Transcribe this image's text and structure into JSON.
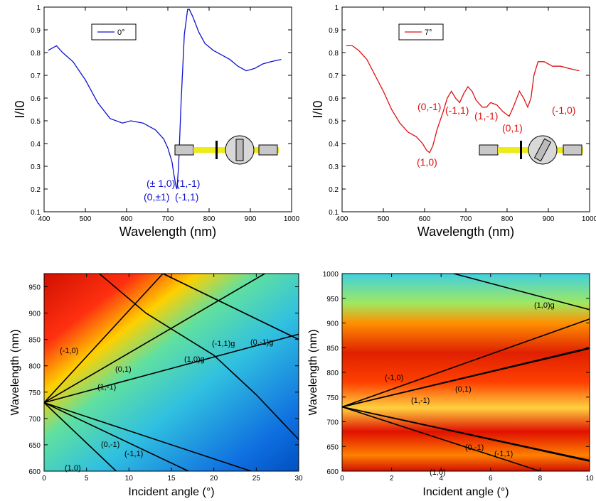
{
  "colors": {
    "blue": "#1010d0",
    "red": "#e01010",
    "frame": "#000000"
  },
  "chart_data": [
    {
      "type": "line",
      "xlabel": "Wavelength (nm)",
      "ylabel": "I/I0",
      "xlim": [
        400,
        1000
      ],
      "ylim": [
        0.1,
        1
      ],
      "xticks": [
        "400",
        "500",
        "600",
        "700",
        "800",
        "900",
        "1000"
      ],
      "yticks": [
        "0.1",
        "0.2",
        "0.3",
        "0.4",
        "0.5",
        "0.6",
        "0.7",
        "0.8",
        "0.9",
        "1"
      ],
      "legend": {
        "position": "top-left",
        "label": "0°"
      },
      "series": [
        {
          "name": "0°",
          "color": "#1010d0",
          "x": [
            410,
            430,
            445,
            470,
            500,
            530,
            560,
            590,
            610,
            640,
            670,
            690,
            700,
            710,
            715,
            720,
            722,
            726,
            732,
            740,
            748,
            752,
            760,
            775,
            790,
            810,
            830,
            850,
            870,
            890,
            910,
            930,
            950,
            975
          ],
          "y": [
            0.81,
            0.83,
            0.8,
            0.76,
            0.68,
            0.58,
            0.51,
            0.49,
            0.5,
            0.49,
            0.46,
            0.42,
            0.38,
            0.32,
            0.26,
            0.21,
            0.2,
            0.3,
            0.58,
            0.88,
            0.99,
            0.99,
            0.96,
            0.89,
            0.84,
            0.81,
            0.79,
            0.77,
            0.74,
            0.72,
            0.73,
            0.75,
            0.76,
            0.77
          ]
        }
      ],
      "annotations": [
        "(± 1,0)",
        "(0,±1)",
        "(1,-1)",
        "(-1,1)"
      ]
    },
    {
      "type": "line",
      "xlabel": "Wavelength (nm)",
      "ylabel": "I/I0",
      "xlim": [
        400,
        1000
      ],
      "ylim": [
        0.1,
        1
      ],
      "xticks": [
        "400",
        "500",
        "600",
        "700",
        "800",
        "900",
        "1000"
      ],
      "yticks": [
        "0.1",
        "0.2",
        "0.3",
        "0.4",
        "0.5",
        "0.6",
        "0.7",
        "0.8",
        "0.9",
        "1"
      ],
      "legend": {
        "position": "top-left",
        "label": "7°"
      },
      "series": [
        {
          "name": "7°",
          "color": "#e01010",
          "x": [
            410,
            425,
            440,
            460,
            480,
            500,
            520,
            540,
            560,
            580,
            595,
            605,
            612,
            620,
            630,
            645,
            655,
            665,
            675,
            685,
            695,
            705,
            715,
            725,
            740,
            750,
            760,
            775,
            790,
            805,
            815,
            830,
            840,
            850,
            858,
            865,
            875,
            890,
            910,
            930,
            950,
            975
          ],
          "y": [
            0.83,
            0.83,
            0.81,
            0.77,
            0.7,
            0.63,
            0.55,
            0.49,
            0.45,
            0.43,
            0.4,
            0.37,
            0.36,
            0.39,
            0.46,
            0.54,
            0.6,
            0.63,
            0.6,
            0.58,
            0.62,
            0.65,
            0.63,
            0.59,
            0.56,
            0.56,
            0.58,
            0.57,
            0.54,
            0.52,
            0.56,
            0.63,
            0.6,
            0.56,
            0.6,
            0.7,
            0.76,
            0.76,
            0.74,
            0.74,
            0.73,
            0.72
          ]
        }
      ],
      "annotations": [
        "(1,0)",
        "(0,-1)",
        "(-1,1)",
        "(1,-1)",
        "(0,1)",
        "(-1,0)"
      ]
    },
    {
      "type": "heatmap",
      "xlabel": "Incident angle (°)",
      "ylabel": "Wavelength (nm)",
      "xlim": [
        0,
        30
      ],
      "ylim": [
        600,
        975
      ],
      "xticks": [
        "0",
        "5",
        "10",
        "15",
        "20",
        "25",
        "30"
      ],
      "yticks": [
        "600",
        "650",
        "700",
        "750",
        "800",
        "850",
        "900",
        "950"
      ],
      "colormap": "jet",
      "mode_lines": [
        {
          "label": "(-1,0)",
          "x": [
            0,
            14
          ],
          "y": [
            730,
            975
          ]
        },
        {
          "label": "(0,1)",
          "x": [
            0,
            26
          ],
          "y": [
            730,
            975
          ]
        },
        {
          "label": "(1,-1)",
          "x": [
            0,
            30
          ],
          "y": [
            730,
            860
          ]
        },
        {
          "label": "(0,-1)",
          "x": [
            0,
            17
          ],
          "y": [
            730,
            600
          ]
        },
        {
          "label": "(-1,1)",
          "x": [
            0,
            30
          ],
          "y": [
            730,
            570
          ]
        },
        {
          "label": "(1,0)",
          "x": [
            0,
            8.5
          ],
          "y": [
            730,
            600
          ]
        },
        {
          "label": "(-1,1)g",
          "x": [
            14,
            30
          ],
          "y": [
            975,
            850
          ]
        },
        {
          "label": "(0,-1)g",
          "x": [
            14,
            30
          ],
          "y": [
            975,
            850
          ]
        },
        {
          "label": "(1,0)g",
          "x": [
            6.5,
            12,
            16,
            20,
            25,
            30
          ],
          "y": [
            975,
            900,
            860,
            820,
            745,
            660
          ]
        }
      ],
      "annotations": [
        "(-1,0)",
        "(0,1)",
        "(1,-1)",
        "(0,-1)",
        "(-1,1)",
        "(1,0)",
        "(1,0)g",
        "(-1,1)g",
        "(0,-1)g"
      ]
    },
    {
      "type": "heatmap",
      "xlabel": "Incident angle (°)",
      "ylabel": "Wavelength (nm)",
      "xlim": [
        0,
        10
      ],
      "ylim": [
        600,
        1000
      ],
      "xticks": [
        "0",
        "2",
        "4",
        "6",
        "8",
        "10"
      ],
      "yticks": [
        "600",
        "650",
        "700",
        "750",
        "800",
        "850",
        "900",
        "950",
        "1000"
      ],
      "colormap": "jet",
      "mode_lines": [
        {
          "label": "(-1,0)",
          "x": [
            0,
            10
          ],
          "y": [
            730,
            908
          ]
        },
        {
          "label": "(0,1)",
          "x": [
            0,
            10
          ],
          "y": [
            730,
            848
          ]
        },
        {
          "label": "(1,-1)",
          "x": [
            0,
            10
          ],
          "y": [
            730,
            850
          ]
        },
        {
          "label": "(0,-1)",
          "x": [
            0,
            10
          ],
          "y": [
            730,
            622
          ]
        },
        {
          "label": "(-1,1)",
          "x": [
            0,
            10
          ],
          "y": [
            730,
            620
          ]
        },
        {
          "label": "(1,0)",
          "x": [
            0,
            8
          ],
          "y": [
            730,
            600
          ]
        },
        {
          "label": "(1,0)g",
          "x": [
            0,
            10
          ],
          "y": [
            1060,
            927
          ]
        }
      ],
      "annotations": [
        "(-1,0)",
        "(1,-1)",
        "(0,1)",
        "(0,-1)",
        "(-1,1)",
        "(1,0)",
        "(1,0)g"
      ]
    }
  ]
}
